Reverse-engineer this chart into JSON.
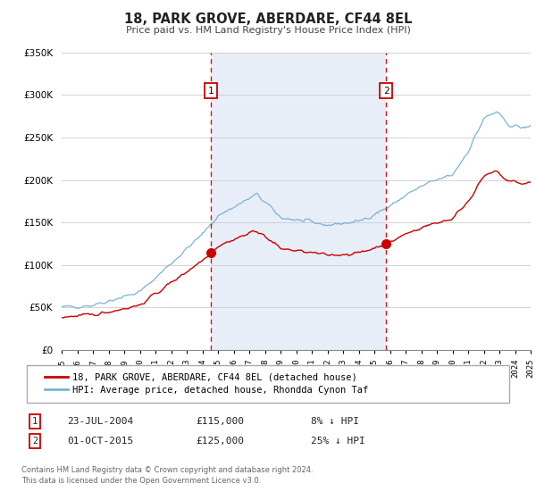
{
  "title": "18, PARK GROVE, ABERDARE, CF44 8EL",
  "subtitle": "Price paid vs. HM Land Registry's House Price Index (HPI)",
  "hpi_label": "HPI: Average price, detached house, Rhondda Cynon Taf",
  "property_label": "18, PARK GROVE, ABERDARE, CF44 8EL (detached house)",
  "hpi_color": "#7ab3d4",
  "property_color": "#cc0000",
  "shade_color": "#e8eef8",
  "plot_bg": "#ffffff",
  "ylim": [
    0,
    350000
  ],
  "xlim_start": 1995,
  "xlim_end": 2025,
  "sale1_date": 2004.55,
  "sale1_label": "23-JUL-2004",
  "sale1_price": "£115,000",
  "sale1_pct": "8% ↓ HPI",
  "sale2_date": 2015.75,
  "sale2_label": "01-OCT-2015",
  "sale2_price": "£125,000",
  "sale2_pct": "25% ↓ HPI",
  "sale1_value": 115000,
  "sale2_value": 125000,
  "footnote1": "Contains HM Land Registry data © Crown copyright and database right 2024.",
  "footnote2": "This data is licensed under the Open Government Licence v3.0."
}
